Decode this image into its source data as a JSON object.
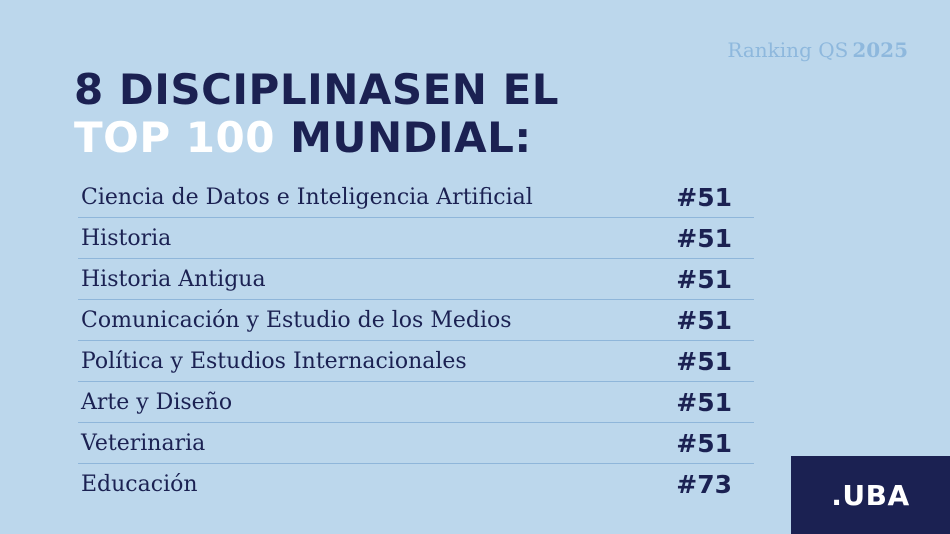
{
  "header": {
    "ranking_label": "Ranking QS",
    "ranking_year": "2025"
  },
  "headline": {
    "line1": "8 DISCIPLINASEN EL",
    "line2_highlight": "TOP 100",
    "line2_rest": "MUNDIAL:"
  },
  "disciplines": [
    {
      "name": "Ciencia de Datos e Inteligencia Artificial",
      "rank": "#51"
    },
    {
      "name": "Historia",
      "rank": "#51"
    },
    {
      "name": "Historia Antigua",
      "rank": "#51"
    },
    {
      "name": "Comunicación y Estudio de los Medios",
      "rank": "#51"
    },
    {
      "name": "Política y Estudios Internacionales",
      "rank": "#51"
    },
    {
      "name": "Arte y Diseño",
      "rank": "#51"
    },
    {
      "name": "Veterinaria",
      "rank": "#51"
    },
    {
      "name": "Educación",
      "rank": "#73"
    }
  ],
  "logo": {
    "text": ".UBA"
  },
  "colors": {
    "background": "#bcd7ec",
    "navy": "#1b2152",
    "accent_light": "#8eb8dd"
  }
}
